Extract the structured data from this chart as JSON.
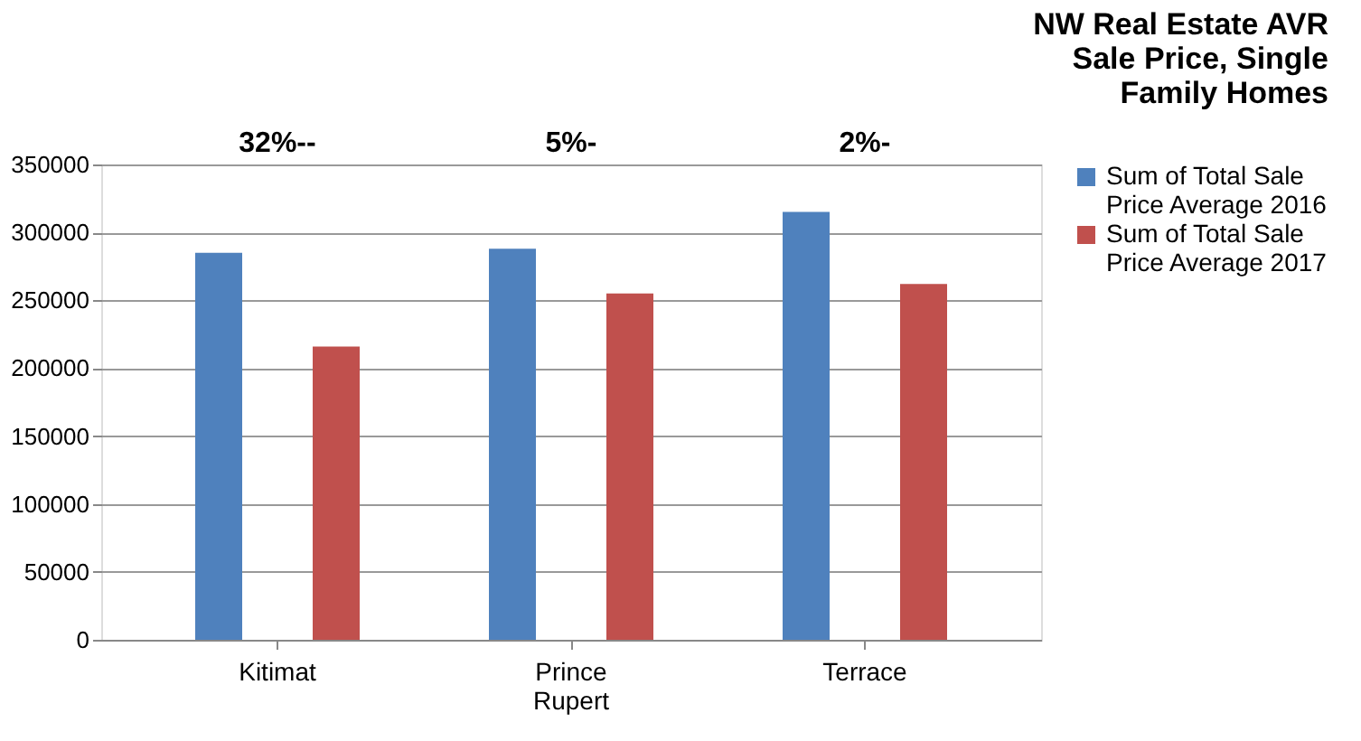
{
  "chart_data": {
    "type": "bar",
    "title": "NW Real Estate AVR Sale Price, Single Family Homes",
    "categories": [
      "Kitimat",
      "Prince Rupert",
      "Terrace"
    ],
    "series": [
      {
        "name": "Sum of Total Sale Price Average 2016",
        "color": "#4f81bd",
        "values": [
          285000,
          288000,
          315000
        ]
      },
      {
        "name": "Sum of Total Sale Price Average 2017",
        "color": "#c0504d",
        "values": [
          216000,
          255000,
          262000
        ]
      }
    ],
    "ylim": [
      0,
      350000
    ],
    "yticks": [
      0,
      50000,
      100000,
      150000,
      200000,
      250000,
      300000,
      350000
    ],
    "grid": "y",
    "legend": "right",
    "annotations": [
      "32%--",
      "5%-",
      "2%-"
    ]
  }
}
